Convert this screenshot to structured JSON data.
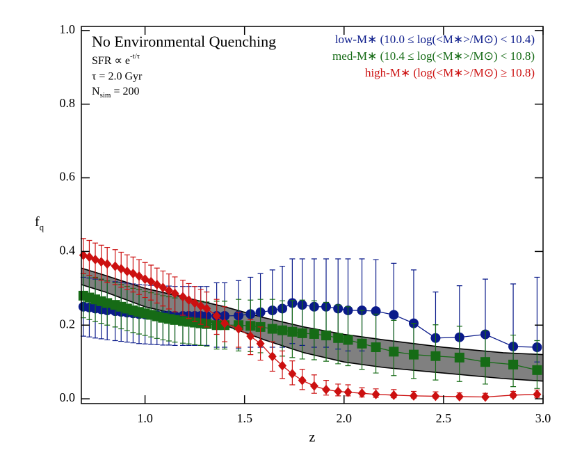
{
  "chart_data": {
    "type": "errorbar",
    "annotations": {
      "title": "No Environmental Quenching",
      "sfr": "SFR ∝ e",
      "sfr_sup": "-t/τ",
      "tau": "τ = 2.0 Gyr",
      "n": "N",
      "n_sub": "sim",
      "n_rest": " = 200"
    },
    "xlabel": "z",
    "ylabel": "f",
    "ylabel_sub": "q",
    "xlim": [
      0.68,
      3.0
    ],
    "ylim": [
      -0.013,
      1.011
    ],
    "xticks": [
      {
        "value": 1,
        "label": "1.0"
      },
      1.5,
      {
        "value": 2,
        "label": "2.0"
      },
      2.5,
      {
        "value": 3,
        "label": "3.0"
      }
    ],
    "yticks": [
      {
        "value": 0,
        "label": "0.0"
      },
      0.2,
      0.4,
      0.6,
      0.8,
      {
        "value": 1,
        "label": "1.0"
      }
    ],
    "legend": "upper right",
    "band": {
      "color": "#808080",
      "x": [
        0.68,
        0.8,
        1.0,
        1.2,
        1.4,
        1.6,
        1.8,
        2.0,
        2.2,
        2.5,
        2.8,
        3.0
      ],
      "upper": [
        0.355,
        0.335,
        0.3,
        0.275,
        0.25,
        0.22,
        0.195,
        0.175,
        0.16,
        0.14,
        0.125,
        0.12
      ],
      "lower": [
        0.31,
        0.29,
        0.25,
        0.225,
        0.2,
        0.16,
        0.125,
        0.1,
        0.085,
        0.07,
        0.055,
        0.048
      ]
    },
    "x": [
      0.69,
      0.72,
      0.75,
      0.78,
      0.81,
      0.85,
      0.88,
      0.91,
      0.94,
      0.97,
      1.0,
      1.03,
      1.06,
      1.09,
      1.12,
      1.15,
      1.19,
      1.22,
      1.25,
      1.28,
      1.31,
      1.36,
      1.4,
      1.47,
      1.53,
      1.58,
      1.64,
      1.69,
      1.74,
      1.79,
      1.85,
      1.91,
      1.97,
      2.02,
      2.09,
      2.16,
      2.25,
      2.35,
      2.46,
      2.58,
      2.71,
      2.85,
      2.97
    ],
    "series": [
      {
        "name": "low-M∗ (10.0 ≤ log(<M∗>/M⊙) < 10.4)",
        "color": "#0a1a8a",
        "marker": "circle",
        "values": [
          0.25,
          0.248,
          0.245,
          0.243,
          0.24,
          0.238,
          0.236,
          0.234,
          0.232,
          0.23,
          0.229,
          0.228,
          0.227,
          0.226,
          0.226,
          0.225,
          0.225,
          0.225,
          0.225,
          0.225,
          0.225,
          0.225,
          0.225,
          0.226,
          0.23,
          0.235,
          0.24,
          0.245,
          0.26,
          0.255,
          0.25,
          0.25,
          0.245,
          0.24,
          0.24,
          0.238,
          0.228,
          0.205,
          0.165,
          0.167,
          0.175,
          0.142,
          0.14
        ],
        "err_low": [
          0.08,
          0.08,
          0.08,
          0.08,
          0.08,
          0.08,
          0.08,
          0.08,
          0.08,
          0.08,
          0.08,
          0.08,
          0.08,
          0.08,
          0.08,
          0.08,
          0.08,
          0.08,
          0.08,
          0.08,
          0.08,
          0.085,
          0.085,
          0.09,
          0.09,
          0.095,
          0.1,
          0.105,
          0.11,
          0.11,
          0.11,
          0.11,
          0.11,
          0.11,
          0.11,
          0.11,
          0.1,
          0.08,
          0.06,
          0.06,
          0.065,
          0.04,
          0.04
        ],
        "err_high": [
          0.08,
          0.08,
          0.08,
          0.08,
          0.08,
          0.08,
          0.08,
          0.08,
          0.08,
          0.08,
          0.08,
          0.08,
          0.08,
          0.08,
          0.08,
          0.08,
          0.08,
          0.08,
          0.08,
          0.08,
          0.08,
          0.09,
          0.09,
          0.095,
          0.1,
          0.105,
          0.11,
          0.115,
          0.12,
          0.125,
          0.13,
          0.13,
          0.135,
          0.14,
          0.14,
          0.14,
          0.14,
          0.145,
          0.125,
          0.14,
          0.15,
          0.17,
          0.19
        ]
      },
      {
        "name": "med-M∗ (10.4 ≤ log(<M∗>/M⊙) < 10.8)",
        "color": "#166b16",
        "marker": "square",
        "values": [
          0.28,
          0.275,
          0.27,
          0.265,
          0.26,
          0.255,
          0.25,
          0.245,
          0.24,
          0.236,
          0.232,
          0.228,
          0.224,
          0.22,
          0.217,
          0.214,
          0.211,
          0.209,
          0.207,
          0.205,
          0.203,
          0.2,
          0.2,
          0.2,
          0.198,
          0.195,
          0.19,
          0.186,
          0.182,
          0.178,
          0.176,
          0.172,
          0.165,
          0.16,
          0.15,
          0.14,
          0.128,
          0.12,
          0.116,
          0.112,
          0.1,
          0.093,
          0.078
        ],
        "err_low": [
          0.06,
          0.06,
          0.06,
          0.06,
          0.06,
          0.06,
          0.06,
          0.06,
          0.06,
          0.06,
          0.06,
          0.06,
          0.06,
          0.06,
          0.06,
          0.06,
          0.06,
          0.06,
          0.06,
          0.06,
          0.06,
          0.065,
          0.065,
          0.07,
          0.07,
          0.07,
          0.07,
          0.07,
          0.07,
          0.07,
          0.07,
          0.07,
          0.07,
          0.07,
          0.07,
          0.07,
          0.065,
          0.065,
          0.065,
          0.065,
          0.06,
          0.06,
          0.05
        ],
        "err_high": [
          0.06,
          0.06,
          0.06,
          0.06,
          0.06,
          0.06,
          0.06,
          0.06,
          0.06,
          0.06,
          0.06,
          0.06,
          0.06,
          0.06,
          0.06,
          0.06,
          0.06,
          0.06,
          0.06,
          0.06,
          0.06,
          0.065,
          0.065,
          0.07,
          0.07,
          0.075,
          0.08,
          0.08,
          0.085,
          0.09,
          0.09,
          0.09,
          0.09,
          0.09,
          0.09,
          0.09,
          0.085,
          0.085,
          0.085,
          0.085,
          0.085,
          0.08,
          0.08
        ]
      },
      {
        "name": "high-M∗ (log(<M∗>/M⊙) ≥ 10.8)",
        "color": "#cc1010",
        "marker": "diamond",
        "values": [
          0.39,
          0.385,
          0.378,
          0.372,
          0.366,
          0.36,
          0.353,
          0.346,
          0.34,
          0.333,
          0.325,
          0.318,
          0.31,
          0.302,
          0.294,
          0.286,
          0.277,
          0.268,
          0.26,
          0.252,
          0.245,
          0.225,
          0.205,
          0.19,
          0.17,
          0.15,
          0.115,
          0.09,
          0.068,
          0.05,
          0.035,
          0.025,
          0.02,
          0.018,
          0.015,
          0.012,
          0.01,
          0.008,
          0.007,
          0.006,
          0.005,
          0.01,
          0.012
        ],
        "err_low": [
          0.05,
          0.05,
          0.05,
          0.05,
          0.05,
          0.05,
          0.05,
          0.05,
          0.05,
          0.05,
          0.05,
          0.05,
          0.05,
          0.05,
          0.05,
          0.05,
          0.05,
          0.05,
          0.05,
          0.05,
          0.05,
          0.05,
          0.05,
          0.05,
          0.05,
          0.045,
          0.04,
          0.035,
          0.03,
          0.025,
          0.02,
          0.015,
          0.012,
          0.01,
          0.01,
          0.008,
          0.007,
          0.006,
          0.005,
          0.005,
          0.004,
          0.006,
          0.008
        ],
        "err_high": [
          0.045,
          0.045,
          0.045,
          0.045,
          0.045,
          0.045,
          0.045,
          0.045,
          0.045,
          0.045,
          0.045,
          0.045,
          0.045,
          0.045,
          0.045,
          0.045,
          0.045,
          0.045,
          0.045,
          0.045,
          0.045,
          0.045,
          0.045,
          0.045,
          0.045,
          0.045,
          0.04,
          0.04,
          0.035,
          0.03,
          0.03,
          0.025,
          0.02,
          0.02,
          0.015,
          0.015,
          0.015,
          0.012,
          0.012,
          0.01,
          0.01,
          0.01,
          0.012
        ]
      }
    ]
  }
}
